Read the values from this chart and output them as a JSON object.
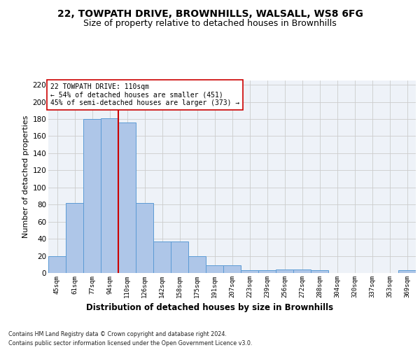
{
  "title1": "22, TOWPATH DRIVE, BROWNHILLS, WALSALL, WS8 6FG",
  "title2": "Size of property relative to detached houses in Brownhills",
  "xlabel": "Distribution of detached houses by size in Brownhills",
  "ylabel": "Number of detached properties",
  "bin_labels": [
    "45sqm",
    "61sqm",
    "77sqm",
    "94sqm",
    "110sqm",
    "126sqm",
    "142sqm",
    "158sqm",
    "175sqm",
    "191sqm",
    "207sqm",
    "223sqm",
    "239sqm",
    "256sqm",
    "272sqm",
    "288sqm",
    "304sqm",
    "320sqm",
    "337sqm",
    "353sqm",
    "369sqm"
  ],
  "bar_values": [
    20,
    82,
    180,
    181,
    176,
    82,
    37,
    37,
    20,
    9,
    9,
    3,
    3,
    4,
    4,
    3,
    0,
    0,
    0,
    0,
    3
  ],
  "bar_color": "#aec6e8",
  "bar_edge_color": "#5b9bd5",
  "vline_color": "#cc0000",
  "annotation_text": "22 TOWPATH DRIVE: 110sqm\n← 54% of detached houses are smaller (451)\n45% of semi-detached houses are larger (373) →",
  "annotation_box_color": "#ffffff",
  "annotation_box_edge": "#cc0000",
  "ylim": [
    0,
    225
  ],
  "yticks": [
    0,
    20,
    40,
    60,
    80,
    100,
    120,
    140,
    160,
    180,
    200,
    220
  ],
  "grid_color": "#cccccc",
  "footer1": "Contains HM Land Registry data © Crown copyright and database right 2024.",
  "footer2": "Contains public sector information licensed under the Open Government Licence v3.0.",
  "bg_color": "#eef2f8",
  "title1_fontsize": 10,
  "title2_fontsize": 9,
  "xlabel_fontsize": 8.5,
  "ylabel_fontsize": 8
}
